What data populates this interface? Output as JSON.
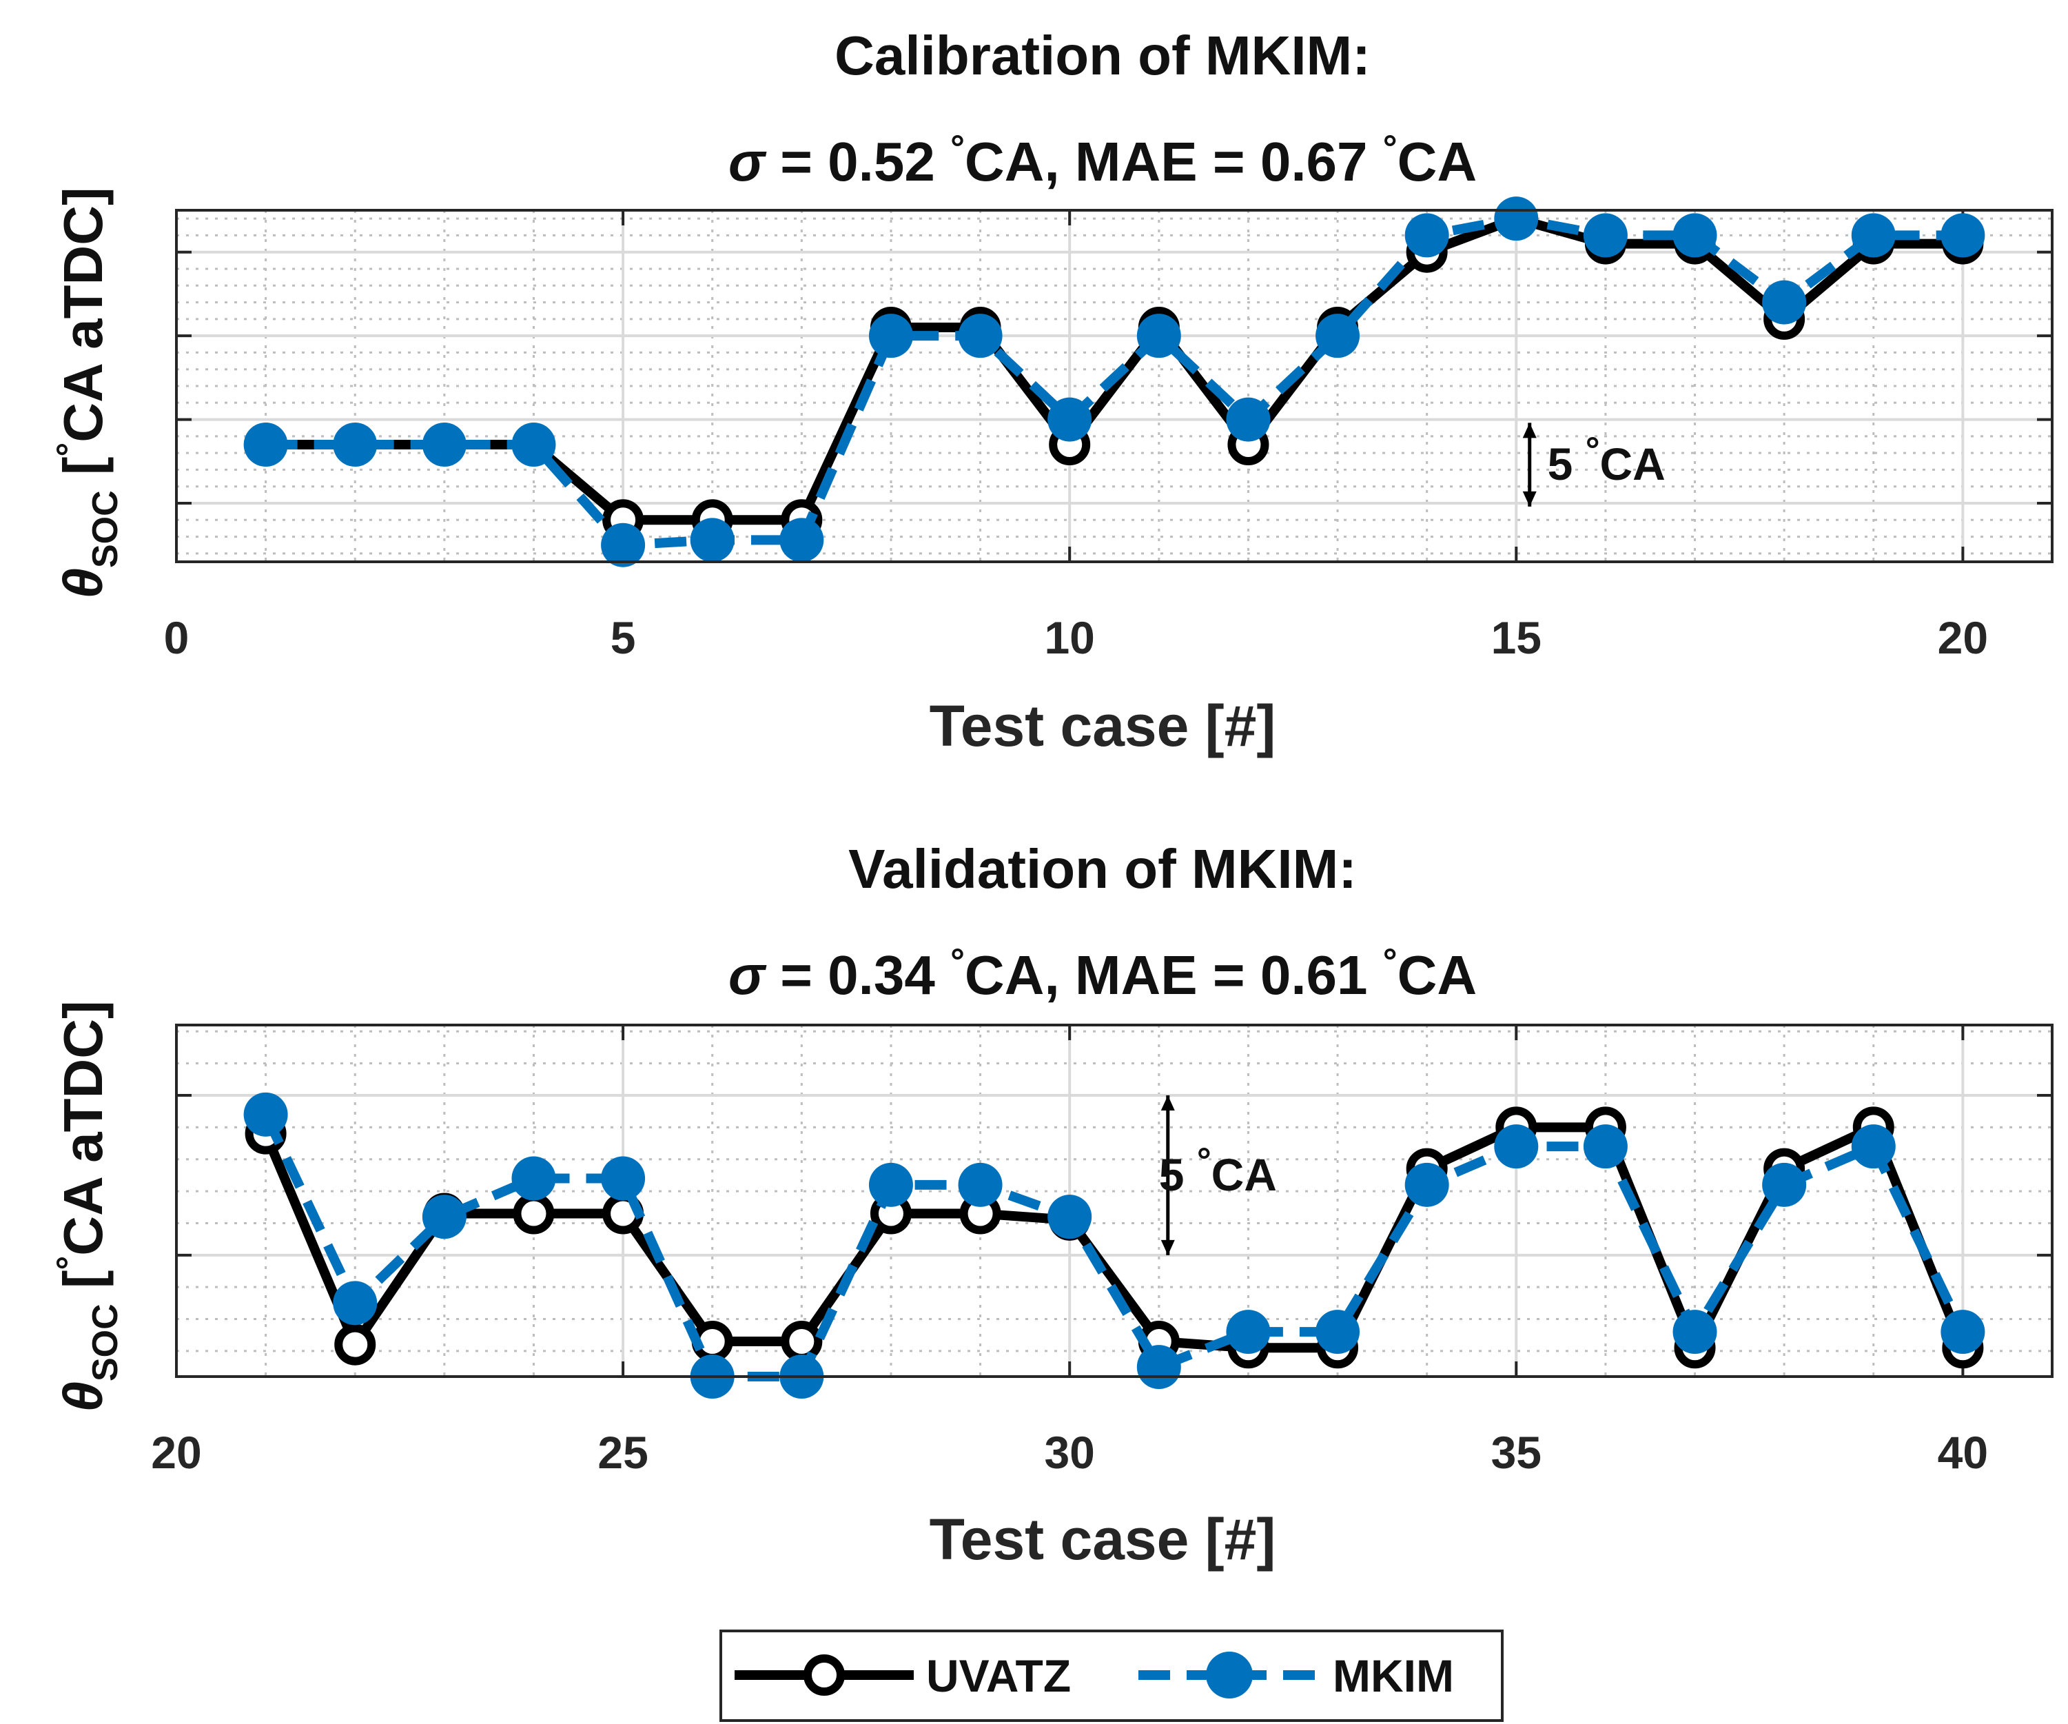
{
  "chart_data": [
    {
      "type": "line",
      "title_line1": "Calibration of MKIM:",
      "title_line2": {
        "sigma_symbol": "σ",
        "text_a": " = 0.52 ",
        "degree": "°",
        "text_b": "CA, MAE = 0.67 ",
        "degree2": "°",
        "text_c": "CA"
      },
      "xlabel": "Test case [#]",
      "ylabel": {
        "theta": "θ",
        "subscript": "SOC",
        "open_bracket": " [",
        "degree": "°",
        "unit": "CA aTDC]"
      },
      "xlim": [
        0,
        21
      ],
      "ylim": [
        -8.5,
        12.5
      ],
      "x_ticks": [
        0,
        5,
        10,
        15,
        20
      ],
      "x_tick_labels": [
        "0",
        "5",
        "10",
        "15",
        "20"
      ],
      "y_ticks": [
        -5,
        0,
        5,
        10
      ],
      "grid": true,
      "minor_grid": true,
      "annotation": {
        "text_a": "5 ",
        "degree": "°",
        "text_b": "CA",
        "x": 15.15,
        "y_from": -5.2,
        "y_to": -0.2,
        "label_x": 15.35,
        "label_y": -2.7
      },
      "x": [
        1,
        2,
        3,
        4,
        5,
        6,
        7,
        8,
        9,
        10,
        11,
        12,
        13,
        14,
        15,
        16,
        17,
        18,
        19,
        20
      ],
      "series": [
        {
          "name": "UVATZ",
          "values": [
            -1.5,
            -1.5,
            -1.5,
            -1.5,
            -6,
            -6,
            -6,
            5.5,
            5.5,
            -1.5,
            5.5,
            -1.5,
            5.5,
            10,
            12,
            10.5,
            10.5,
            6,
            10.5,
            10.5
          ],
          "color": "#000000",
          "style": "solid",
          "marker": "open-circle"
        },
        {
          "name": "MKIM",
          "values": [
            -1.5,
            -1.5,
            -1.5,
            -1.5,
            -7.5,
            -7.2,
            -7.2,
            5,
            5,
            0,
            5,
            0,
            5,
            11,
            12,
            11,
            11,
            7,
            11,
            11
          ],
          "color": "#0072BD",
          "style": "dashed",
          "marker": "filled-circle"
        }
      ]
    },
    {
      "type": "line",
      "title_line1": "Validation of MKIM:",
      "title_line2": {
        "sigma_symbol": "σ",
        "text_a": " = 0.34 ",
        "degree": "°",
        "text_b": "CA, MAE = 0.61 ",
        "degree2": "°",
        "text_c": "CA"
      },
      "xlabel": "Test case [#]",
      "ylabel": {
        "theta": "θ",
        "subscript": "SOC",
        "open_bracket": " [",
        "degree": "°",
        "unit": "CA aTDC]"
      },
      "xlim": [
        20,
        41
      ],
      "ylim": [
        -8.8,
        2.2
      ],
      "x_ticks": [
        20,
        25,
        30,
        35,
        40
      ],
      "x_tick_labels": [
        "20",
        "25",
        "30",
        "35",
        "40"
      ],
      "y_ticks": [
        -5,
        0
      ],
      "grid": true,
      "minor_grid": true,
      "annotation": {
        "text_a": "5 ",
        "degree": "°",
        "text_b": "CA",
        "x": 31.1,
        "y_from": 0,
        "y_to": -5,
        "label_x": 31,
        "label_y": -2.5
      },
      "x": [
        21,
        22,
        23,
        24,
        25,
        26,
        27,
        28,
        29,
        30,
        31,
        32,
        33,
        34,
        35,
        36,
        37,
        38,
        39,
        40
      ],
      "series": [
        {
          "name": "UVATZ",
          "values": [
            -1.2,
            -7.8,
            -3.7,
            -3.7,
            -3.7,
            -7.7,
            -7.7,
            -3.7,
            -3.7,
            -3.9,
            -7.7,
            -7.9,
            -7.9,
            -2.3,
            -1,
            -1,
            -7.9,
            -2.3,
            -1,
            -7.9
          ],
          "color": "#000000",
          "style": "solid",
          "marker": "open-circle"
        },
        {
          "name": "MKIM",
          "values": [
            -0.6,
            -6.5,
            -3.8,
            -2.6,
            -2.6,
            -8.8,
            -8.8,
            -2.8,
            -2.8,
            -3.8,
            -8.5,
            -7.4,
            -7.4,
            -2.8,
            -1.6,
            -1.6,
            -7.4,
            -2.8,
            -1.6,
            -7.4
          ],
          "color": "#0072BD",
          "style": "dashed",
          "marker": "filled-circle"
        }
      ]
    }
  ],
  "legend": {
    "placement": "bottom-center",
    "entries": [
      "UVATZ",
      "MKIM"
    ]
  }
}
